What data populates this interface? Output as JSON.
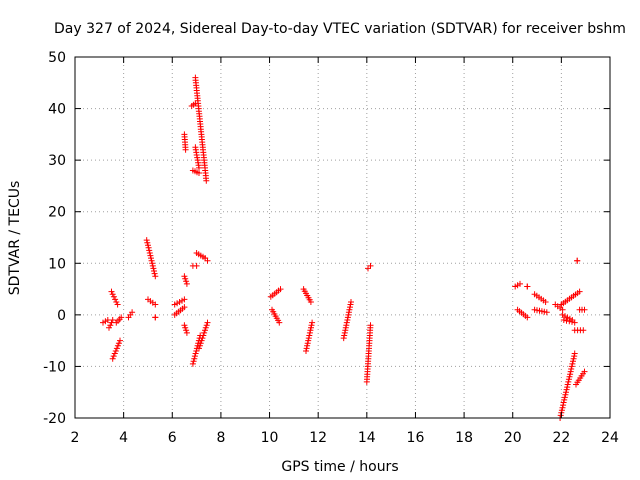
{
  "chart_data": {
    "type": "scatter",
    "title": "Day 327 of 2024, Sidereal Day-to-day VTEC variation (SDTVAR) for receiver bshm",
    "xlabel": "GPS time / hours",
    "ylabel": "SDTVAR / TECUs",
    "xlim": [
      2,
      24
    ],
    "ylim": [
      -20,
      50
    ],
    "xticks": [
      2,
      4,
      6,
      8,
      10,
      12,
      14,
      16,
      18,
      20,
      22,
      24
    ],
    "yticks": [
      -20,
      -10,
      0,
      10,
      20,
      30,
      40,
      50
    ],
    "grid": true,
    "marker": "+",
    "series_color": "#ff0000",
    "segments": [
      {
        "x0": 3.15,
        "x1": 3.35,
        "y0": -1.5,
        "y1": -1.0
      },
      {
        "x0": 3.4,
        "x1": 3.55,
        "y0": -2.5,
        "y1": -1.0
      },
      {
        "x0": 3.5,
        "x1": 3.75,
        "y0": 4.5,
        "y1": 2.0
      },
      {
        "x0": 3.55,
        "x1": 3.85,
        "y0": -8.5,
        "y1": -5.0
      },
      {
        "x0": 3.7,
        "x1": 3.9,
        "y0": -1.5,
        "y1": -0.5
      },
      {
        "x0": 4.2,
        "x1": 4.35,
        "y0": -0.5,
        "y1": 0.5
      },
      {
        "x0": 4.95,
        "x1": 5.3,
        "y0": 14.5,
        "y1": 7.5
      },
      {
        "x0": 5.0,
        "x1": 5.3,
        "y0": 3.0,
        "y1": 2.0
      },
      {
        "x0": 5.3,
        "x1": 5.3,
        "y0": -0.5,
        "y1": -0.5
      },
      {
        "x0": 6.1,
        "x1": 6.5,
        "y0": 2.0,
        "y1": 3.0
      },
      {
        "x0": 6.1,
        "x1": 6.5,
        "y0": 0.0,
        "y1": 1.5
      },
      {
        "x0": 6.5,
        "x1": 6.55,
        "y0": 35.0,
        "y1": 32.0
      },
      {
        "x0": 6.5,
        "x1": 6.6,
        "y0": 7.5,
        "y1": 6.0
      },
      {
        "x0": 6.5,
        "x1": 6.6,
        "y0": -2.0,
        "y1": -3.5
      },
      {
        "x0": 6.8,
        "x1": 6.95,
        "y0": 40.5,
        "y1": 41.0
      },
      {
        "x0": 6.85,
        "x1": 7.0,
        "y0": 9.5,
        "y1": 9.5
      },
      {
        "x0": 6.85,
        "x1": 7.1,
        "y0": 28.0,
        "y1": 27.5
      },
      {
        "x0": 6.95,
        "x1": 7.4,
        "y0": 46.0,
        "y1": 26.0
      },
      {
        "x0": 6.95,
        "x1": 7.1,
        "y0": 32.5,
        "y1": 28.5
      },
      {
        "x0": 7.0,
        "x1": 7.35,
        "y0": 12.0,
        "y1": 11.0
      },
      {
        "x0": 7.35,
        "x1": 7.45,
        "y0": 11.0,
        "y1": 10.5
      },
      {
        "x0": 6.85,
        "x1": 7.15,
        "y0": -9.5,
        "y1": -4.0
      },
      {
        "x0": 7.1,
        "x1": 7.45,
        "y0": -6.5,
        "y1": -1.5
      },
      {
        "x0": 10.05,
        "x1": 10.45,
        "y0": 3.5,
        "y1": 5.0
      },
      {
        "x0": 10.1,
        "x1": 10.4,
        "y0": 1.0,
        "y1": -1.5
      },
      {
        "x0": 11.4,
        "x1": 11.7,
        "y0": 5.0,
        "y1": 2.5
      },
      {
        "x0": 11.5,
        "x1": 11.75,
        "y0": -7.0,
        "y1": -1.5
      },
      {
        "x0": 13.05,
        "x1": 13.35,
        "y0": -4.5,
        "y1": 2.5
      },
      {
        "x0": 14.0,
        "x1": 14.15,
        "y0": -13.0,
        "y1": -2.0
      },
      {
        "x0": 14.05,
        "x1": 14.15,
        "y0": 9.0,
        "y1": 9.5
      },
      {
        "x0": 20.1,
        "x1": 20.3,
        "y0": 5.5,
        "y1": 6.0
      },
      {
        "x0": 20.2,
        "x1": 20.6,
        "y0": 1.0,
        "y1": -0.5
      },
      {
        "x0": 20.6,
        "x1": 20.6,
        "y0": 5.5,
        "y1": 5.5
      },
      {
        "x0": 20.9,
        "x1": 21.35,
        "y0": 4.0,
        "y1": 2.5
      },
      {
        "x0": 20.9,
        "x1": 21.4,
        "y0": 1.0,
        "y1": 0.5
      },
      {
        "x0": 21.75,
        "x1": 22.05,
        "y0": 2.0,
        "y1": 1.0
      },
      {
        "x0": 21.95,
        "x1": 22.55,
        "y0": -20.0,
        "y1": -7.5
      },
      {
        "x0": 22.0,
        "x1": 22.75,
        "y0": 2.0,
        "y1": 4.5
      },
      {
        "x0": 22.05,
        "x1": 22.45,
        "y0": 0.0,
        "y1": -1.0
      },
      {
        "x0": 22.1,
        "x1": 22.55,
        "y0": -1.0,
        "y1": -1.5
      },
      {
        "x0": 22.55,
        "x1": 22.9,
        "y0": -3.0,
        "y1": -3.0
      },
      {
        "x0": 22.6,
        "x1": 22.95,
        "y0": -13.5,
        "y1": -11.0
      },
      {
        "x0": 22.65,
        "x1": 22.65,
        "y0": 10.5,
        "y1": 10.5
      },
      {
        "x0": 22.75,
        "x1": 22.95,
        "y0": 1.0,
        "y1": 1.0
      }
    ]
  }
}
